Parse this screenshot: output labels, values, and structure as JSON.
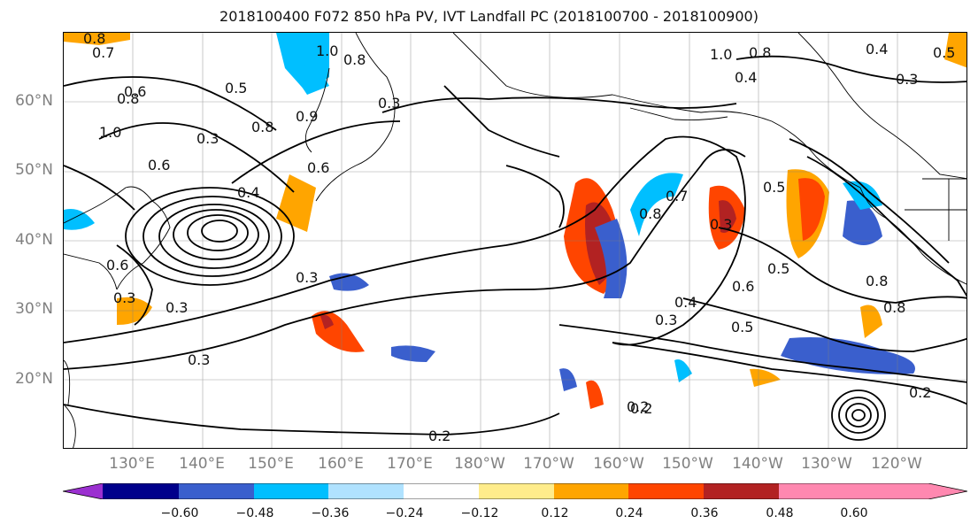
{
  "title": "2018100400 F072 850 hPa PV, IVT Landfall PC (2018100700 - 2018100900)",
  "lat_labels": [
    "60°N",
    "50°N",
    "40°N",
    "30°N",
    "20°N"
  ],
  "lon_labels": [
    "130°E",
    "140°E",
    "150°E",
    "160°E",
    "170°E",
    "180°W",
    "170°W",
    "160°W",
    "150°W",
    "140°W",
    "130°W",
    "120°W"
  ],
  "colorbar": {
    "ticks": [
      "−0.60",
      "−0.48",
      "−0.36",
      "−0.24",
      "−0.12",
      "0.12",
      "0.24",
      "0.36",
      "0.48",
      "0.60"
    ],
    "colors": [
      "#9b30d0",
      "#00008b",
      "#3a5fcd",
      "#00bfff",
      "#b0e2ff",
      "#ffffff",
      "#ffec8b",
      "#ffa500",
      "#ff4500",
      "#b22222",
      "#ff88b0"
    ]
  },
  "contour_labels": [
    "0.8",
    "0.7",
    "1.0",
    "0.8",
    "0.6",
    "0.8",
    "1.0",
    "0.6",
    "0.3",
    "0.5",
    "0.8",
    "0.9",
    "0.6",
    "0.4",
    "0.3",
    "0.6",
    "0.3",
    "0.3",
    "0.3",
    "0.2",
    "0.3",
    "1.0",
    "0.8",
    "0.4",
    "0.3",
    "0.5",
    "0.4",
    "0.7",
    "0.8",
    "0.3",
    "0.5",
    "0.6",
    "0.5",
    "0.4",
    "0.3",
    "0.5",
    "0.8",
    "0.8",
    "0.2",
    "0.2",
    "0.2"
  ],
  "map": {
    "region": "North Pacific",
    "extent": {
      "lon_min": 120,
      "lon_max": 250,
      "lat_min": 10,
      "lat_max": 70
    },
    "gridlines": true,
    "colors": {
      "land_outline": "#000000",
      "contour": "#000000",
      "grid": "#808080"
    }
  }
}
